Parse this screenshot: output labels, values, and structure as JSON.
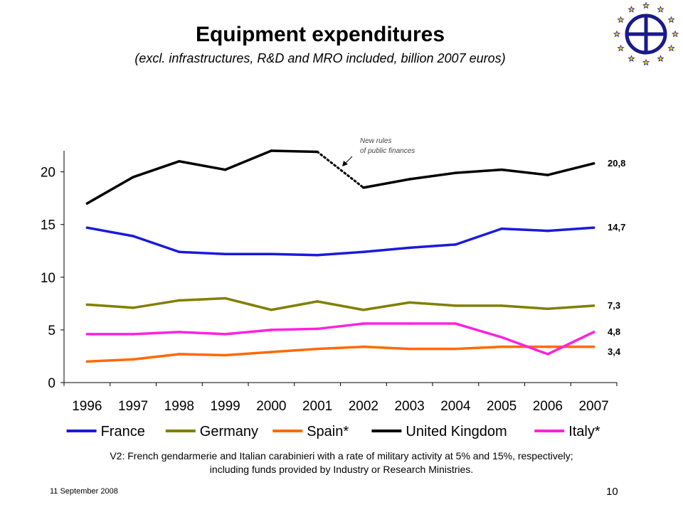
{
  "slide": {
    "title": "Equipment expenditures",
    "subtitle": "(excl. infrastructures, R&D and MRO included, billion 2007 euros)",
    "footnote_line1": "V2: French gendarmerie and Italian carabinieri with a rate of military activity at 5% and 15%, respectively;",
    "footnote_line2": "including funds provided by Industry or Research Ministries.",
    "date": "11 September 2008",
    "page_number": "10"
  },
  "chart_data": {
    "type": "line",
    "title": "",
    "xlabel": "",
    "ylabel": "",
    "x": [
      "1996",
      "1997",
      "1998",
      "1999",
      "2000",
      "2001",
      "2002",
      "2003",
      "2004",
      "2005",
      "2006",
      "2007"
    ],
    "ylim": [
      0,
      22
    ],
    "yticks": [
      0,
      5,
      10,
      15,
      20
    ],
    "grid": false,
    "legend_position": "bottom",
    "annotation": {
      "line1": "New rules",
      "line2": "of public finances"
    },
    "series": [
      {
        "name": "France",
        "color": "#1a1adc",
        "values": [
          14.7,
          13.9,
          12.4,
          12.2,
          12.2,
          12.1,
          12.4,
          12.8,
          13.1,
          14.6,
          14.4,
          14.7
        ],
        "end_label": "14,7"
      },
      {
        "name": "Germany",
        "color": "#808000",
        "values": [
          7.4,
          7.1,
          7.8,
          8.0,
          6.9,
          7.7,
          6.9,
          7.6,
          7.3,
          7.3,
          7.0,
          7.3
        ],
        "end_label": "7,3"
      },
      {
        "name": "Spain*",
        "color": "#ff6a00",
        "values": [
          2.0,
          2.2,
          2.7,
          2.6,
          2.9,
          3.2,
          3.4,
          3.2,
          3.2,
          3.4,
          3.4,
          3.4
        ],
        "end_label": "3,4"
      },
      {
        "name": "United Kingdom",
        "color": "#000000",
        "values": [
          17.0,
          19.5,
          21.0,
          20.2,
          22.0,
          21.9,
          18.5,
          19.3,
          19.9,
          20.2,
          19.7,
          20.8
        ],
        "end_label": "20,8",
        "break_segment": 5
      },
      {
        "name": "Italy*",
        "color": "#ff22dd",
        "values": [
          4.6,
          4.6,
          4.8,
          4.6,
          5.0,
          5.1,
          5.6,
          5.6,
          5.6,
          4.3,
          2.7,
          4.8
        ],
        "end_label": "4,8"
      }
    ]
  }
}
